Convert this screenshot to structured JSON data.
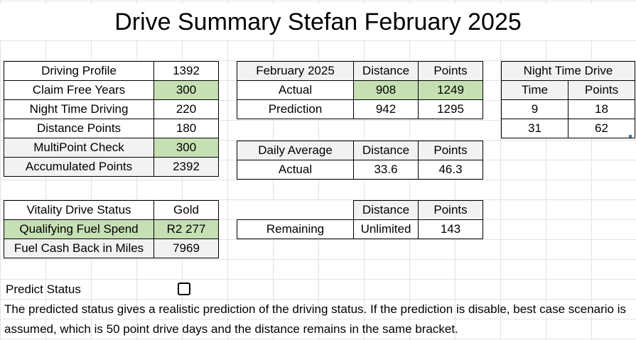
{
  "title": "Drive Summary Stefan February 2025",
  "profile": {
    "rows": [
      {
        "label": "Driving Profile",
        "value": "1392"
      },
      {
        "label": "Claim Free Years",
        "value": "300"
      },
      {
        "label": "Night Time Driving",
        "value": "220"
      },
      {
        "label": "Distance Points",
        "value": "180"
      },
      {
        "label": "MultiPoint Check",
        "value": "300"
      },
      {
        "label": "Accumulated Points",
        "value": "2392"
      }
    ]
  },
  "status": {
    "rows": [
      {
        "label": "Vitality Drive Status",
        "value": "Gold"
      },
      {
        "label": "Qualifying Fuel Spend",
        "value": "R2 277"
      },
      {
        "label": "Fuel Cash Back in Miles",
        "value": "7969"
      }
    ]
  },
  "month": {
    "header": [
      "February 2025",
      "Distance",
      "Points"
    ],
    "rows": [
      [
        "Actual",
        "908",
        "1249"
      ],
      [
        "Prediction",
        "942",
        "1295"
      ]
    ]
  },
  "daily": {
    "header": [
      "Daily Average",
      "Distance",
      "Points"
    ],
    "rows": [
      [
        "Actual",
        "33.6",
        "46.3"
      ]
    ]
  },
  "remaining": {
    "header": [
      "",
      "Distance",
      "Points"
    ],
    "rows": [
      [
        "Remaining",
        "Unlimited",
        "143"
      ]
    ]
  },
  "night": {
    "title": "Night Time Drive",
    "header": [
      "Time",
      "Points"
    ],
    "rows": [
      [
        "9",
        "18"
      ],
      [
        "31",
        "62"
      ]
    ]
  },
  "predict_label": "Predict Status",
  "predict_checked": false,
  "description": "The predicted status gives a realistic prediction of the driving status. If the prediction is disable, best case scenario is assumed, which is 50 point drive days and the distance remains in the same bracket."
}
